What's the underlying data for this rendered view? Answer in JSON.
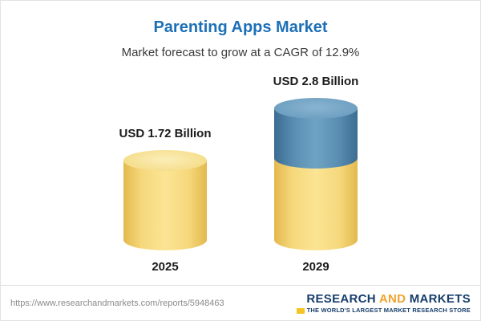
{
  "title": "Parenting Apps Market",
  "subtitle": "Market forecast to grow at a CAGR of 12.9%",
  "chart_data": {
    "type": "bar",
    "title": "Parenting Apps Market",
    "subtitle": "Market forecast to grow at a CAGR of 12.9%",
    "categories": [
      "2025",
      "2029"
    ],
    "values": [
      1.72,
      2.8
    ],
    "value_labels": [
      "USD 1.72 Billion",
      "USD 2.8 Billion"
    ],
    "unit": "USD Billion",
    "cagr": "12.9%",
    "legend_position": "none",
    "grid": false,
    "colors": {
      "bar_2025": "#f6d87c",
      "bar_2029_bottom": "#f6d87c",
      "bar_2029_top": "#5b90b4",
      "title": "#1d70b7"
    }
  },
  "footer": {
    "url": "https://www.researchandmarkets.com/reports/5948463",
    "logo": {
      "part1": "RESEARCH",
      "part2": "AND",
      "part3": "MARKETS",
      "tagline": "THE WORLD'S LARGEST MARKET RESEARCH STORE"
    }
  }
}
